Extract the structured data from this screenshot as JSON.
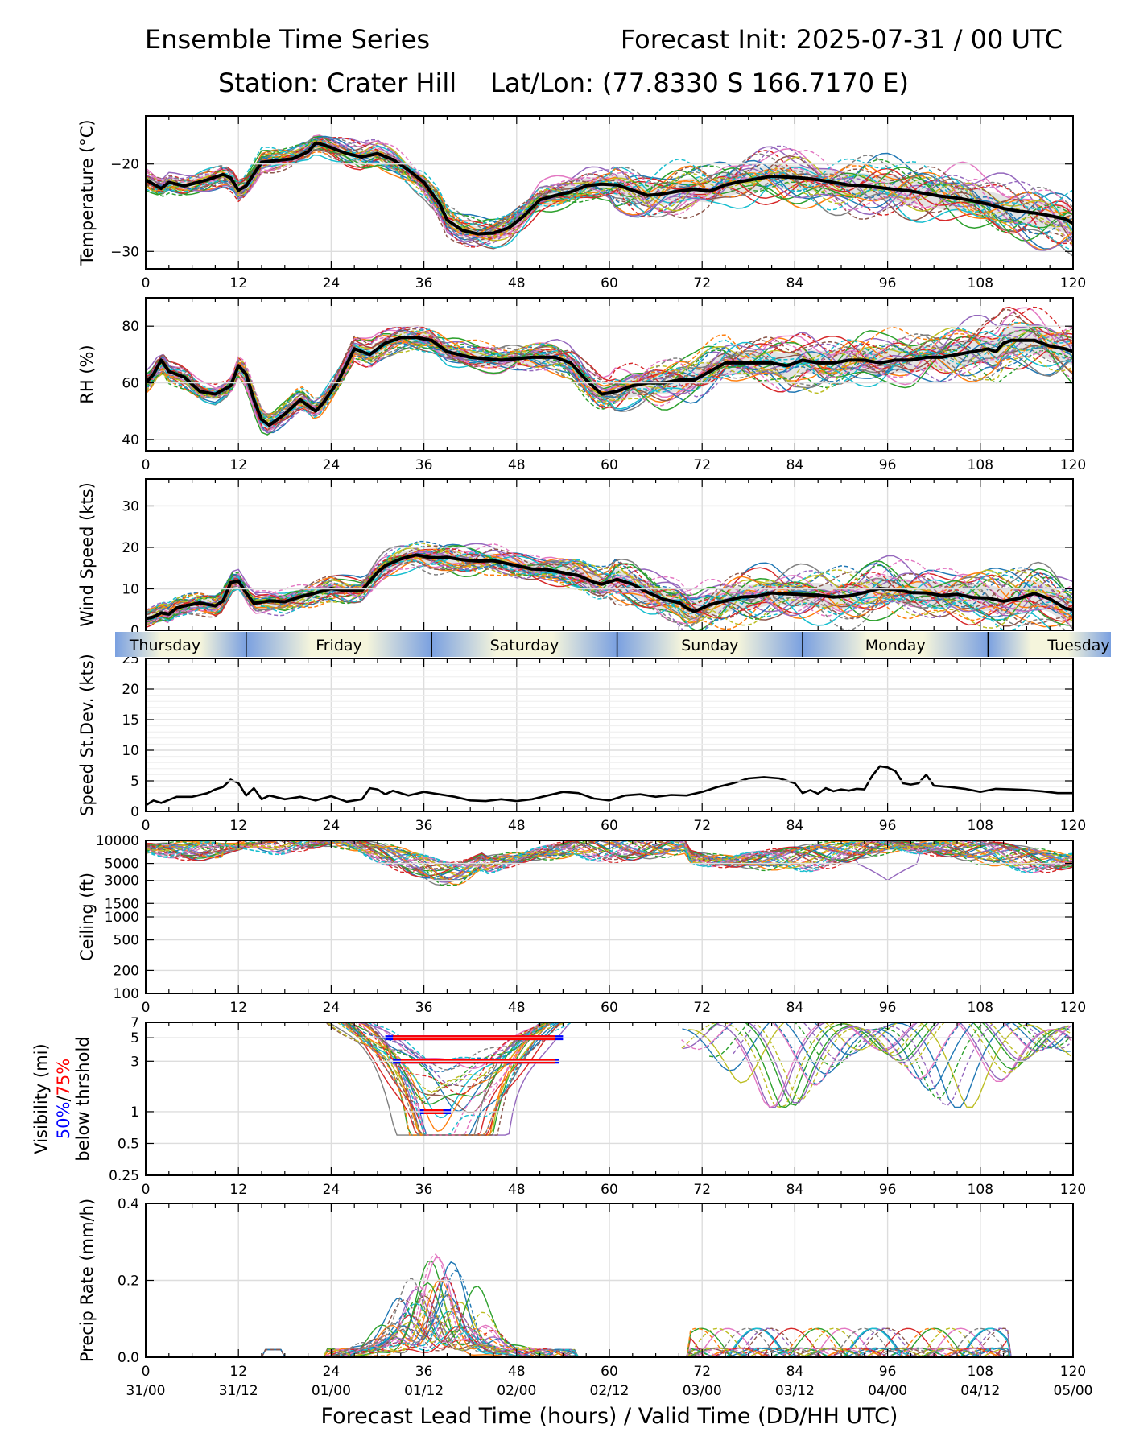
{
  "header": {
    "title": "Ensemble Time Series",
    "init": "Forecast Init: 2025-07-31 / 00 UTC",
    "station": "Station: Crater Hill",
    "latlon": "Lat/Lon: (77.8330 S 166.7170 E)"
  },
  "x_axis": {
    "label": "Forecast Lead Time (hours) / Valid Time (DD/HH UTC)",
    "range": [
      0,
      120
    ],
    "ticks": [
      0,
      12,
      24,
      36,
      48,
      60,
      72,
      84,
      96,
      108,
      120
    ],
    "valid_labels": [
      "31/00",
      "31/12",
      "01/00",
      "01/12",
      "02/00",
      "02/12",
      "03/00",
      "03/12",
      "04/00",
      "04/12",
      "05/00"
    ]
  },
  "day_band": {
    "days": [
      "Thursday",
      "Friday",
      "Saturday",
      "Sunday",
      "Monday",
      "Tuesday"
    ],
    "day_start_hours": [
      -11,
      13,
      37,
      61,
      85,
      109
    ],
    "color_night": "#7aa0e0",
    "color_day": "#f5f5dc"
  },
  "colors": {
    "mean": "#000000",
    "threshold_50": "#0000ff",
    "threshold_75": "#ff0000",
    "spread_fill": "#d9d9d9",
    "grid": "#dddddd"
  },
  "chart_data": [
    {
      "type": "line",
      "panel": "temperature",
      "ylabel": "Temperature (°C)",
      "ylim": [
        -32,
        -14.5
      ],
      "yticks": [
        -30,
        -20
      ],
      "ytick_labels": [
        "−30",
        "−20"
      ],
      "ensemble_members": 30,
      "mean": {
        "x": [
          0,
          2,
          3,
          5,
          8,
          10,
          11,
          12,
          13,
          15,
          17,
          19,
          21,
          22,
          23,
          26,
          28,
          30,
          32,
          34,
          36,
          38,
          39,
          41,
          43,
          45,
          47,
          49,
          51,
          53,
          55,
          57,
          59,
          61,
          63,
          65,
          67,
          69,
          71,
          73,
          75,
          77,
          79,
          81,
          83,
          85,
          87,
          89,
          91,
          93,
          95,
          97,
          99,
          101,
          103,
          105,
          107,
          109,
          111,
          113,
          115,
          117,
          119,
          120
        ],
        "y": [
          -21.8,
          -22.8,
          -22.1,
          -22.5,
          -21.8,
          -21.2,
          -21.6,
          -23.0,
          -22.5,
          -19.8,
          -19.6,
          -19.4,
          -18.6,
          -17.6,
          -17.8,
          -18.8,
          -19.2,
          -18.8,
          -19.5,
          -20.7,
          -22.1,
          -24.5,
          -26.4,
          -27.6,
          -28.0,
          -27.9,
          -27.3,
          -25.9,
          -24.1,
          -23.6,
          -23.2,
          -22.5,
          -22.3,
          -22.4,
          -23.0,
          -23.6,
          -23.4,
          -23.1,
          -22.9,
          -23.1,
          -22.4,
          -22.0,
          -21.7,
          -21.4,
          -21.5,
          -21.6,
          -21.8,
          -22.1,
          -22.4,
          -22.5,
          -22.7,
          -22.9,
          -23.1,
          -23.4,
          -23.7,
          -23.9,
          -24.2,
          -24.6,
          -25.1,
          -25.4,
          -25.6,
          -25.9,
          -26.3,
          -26.8
        ]
      }
    },
    {
      "type": "line",
      "panel": "rh",
      "ylabel": "RH (%)",
      "ylim": [
        36,
        90
      ],
      "yticks": [
        40,
        60,
        80
      ],
      "ensemble_members": 30,
      "mean": {
        "x": [
          0,
          1,
          2,
          3,
          5,
          7,
          9,
          11,
          12,
          13,
          14,
          15,
          16,
          18,
          20,
          22,
          23,
          25,
          27,
          29,
          31,
          33,
          35,
          37,
          39,
          42,
          46,
          50,
          53,
          55,
          57,
          59,
          61,
          63,
          65,
          67,
          69,
          71,
          73,
          75,
          77,
          79,
          81,
          83,
          85,
          87,
          89,
          91,
          93,
          95,
          97,
          99,
          101,
          103,
          105,
          107,
          109,
          110,
          111,
          112,
          115,
          117,
          119,
          120
        ],
        "y": [
          60,
          63,
          68,
          64,
          62,
          57,
          56,
          59,
          66,
          63,
          54,
          47,
          45,
          49,
          54,
          50,
          53,
          61,
          72,
          70,
          74,
          76,
          76,
          75,
          71,
          69,
          68,
          69,
          69,
          67,
          61,
          56,
          57,
          59,
          60,
          60,
          61,
          61,
          64,
          67,
          67,
          67,
          67,
          66,
          68,
          67,
          67,
          68,
          68,
          67,
          68,
          68,
          69,
          69,
          70,
          71,
          72,
          71,
          74,
          75,
          75,
          73,
          72,
          71
        ]
      }
    },
    {
      "type": "line",
      "panel": "wind_speed",
      "ylabel": "Wind Speed (kts)",
      "ylim": [
        0,
        36.5
      ],
      "yticks": [
        0,
        10,
        20,
        30
      ],
      "ensemble_members": 30,
      "mean": {
        "x": [
          0,
          1,
          2,
          3,
          4,
          5,
          7,
          9,
          10,
          11,
          12,
          13,
          14,
          16,
          18,
          20,
          22,
          24,
          26,
          28,
          30,
          31,
          33,
          35,
          37,
          39,
          41,
          43,
          45,
          47,
          50,
          52,
          54,
          56,
          58,
          59,
          61,
          63,
          65,
          67,
          69,
          70,
          71,
          73,
          75,
          77,
          79,
          81,
          83,
          85,
          87,
          89,
          91,
          93,
          95,
          97,
          99,
          101,
          103,
          105,
          107,
          109,
          111,
          113,
          115,
          117,
          119,
          120
        ],
        "y": [
          2.8,
          3.2,
          4.2,
          3.9,
          5.4,
          5.9,
          6.6,
          5.9,
          7.1,
          11.5,
          11.9,
          9.0,
          6.5,
          7.1,
          6.9,
          8.1,
          9.0,
          10.1,
          9.5,
          9.7,
          14.0,
          15.6,
          17.2,
          18.2,
          17.5,
          17.6,
          17.0,
          16.7,
          16.8,
          16.0,
          14.8,
          14.6,
          13.9,
          13.2,
          11.6,
          11.1,
          12.3,
          11.1,
          9.1,
          7.5,
          6.7,
          5.4,
          4.5,
          6.2,
          7.1,
          8.0,
          8.2,
          9.0,
          8.8,
          8.6,
          8.5,
          8.0,
          8.3,
          9.1,
          10.1,
          9.8,
          9.1,
          9.0,
          8.4,
          8.7,
          7.9,
          7.8,
          7.0,
          7.7,
          8.9,
          7.6,
          5.3,
          4.9
        ]
      }
    },
    {
      "type": "line",
      "panel": "speed_stdev",
      "ylabel": "Speed St.Dev. (kts)",
      "ylim": [
        0,
        25
      ],
      "yticks": [
        0,
        5,
        10,
        15,
        20,
        25
      ],
      "series": [
        {
          "x": [
            0,
            1,
            2,
            4,
            6,
            8,
            9,
            10,
            11,
            12,
            13,
            14,
            15,
            16,
            18,
            20,
            22,
            24,
            26,
            28,
            29,
            30,
            31,
            32,
            34,
            36,
            38,
            40,
            42,
            44,
            46,
            48,
            50,
            52,
            54,
            56,
            58,
            60,
            62,
            64,
            66,
            68,
            70,
            72,
            74,
            76,
            78,
            80,
            82,
            84,
            85,
            86,
            87,
            88,
            89,
            90,
            91,
            92,
            93,
            94,
            95,
            96,
            97,
            98,
            99,
            100,
            101,
            102,
            104,
            106,
            108,
            110,
            112,
            114,
            116,
            118,
            120
          ],
          "y": [
            1.0,
            1.8,
            1.4,
            2.4,
            2.4,
            3.0,
            3.6,
            4.0,
            5.2,
            4.6,
            2.6,
            3.8,
            2.0,
            2.6,
            2.0,
            2.4,
            1.8,
            2.5,
            1.6,
            2.0,
            3.8,
            3.6,
            2.8,
            3.4,
            2.6,
            3.2,
            2.8,
            2.4,
            1.8,
            1.7,
            2.0,
            1.7,
            2.0,
            2.6,
            3.2,
            3.0,
            2.1,
            1.8,
            2.6,
            2.8,
            2.4,
            2.7,
            2.6,
            3.2,
            4.0,
            4.6,
            5.4,
            5.6,
            5.4,
            4.6,
            3.0,
            3.5,
            2.9,
            3.8,
            3.3,
            3.6,
            3.4,
            3.7,
            3.6,
            5.8,
            7.4,
            7.2,
            6.6,
            4.6,
            4.4,
            4.6,
            6.0,
            4.2,
            4.0,
            3.7,
            3.2,
            3.7,
            3.6,
            3.5,
            3.3,
            3.0,
            3.0
          ]
        }
      ]
    },
    {
      "type": "line",
      "panel": "ceiling",
      "ylabel": "Ceiling (ft)",
      "scale": "log",
      "ylim": [
        100,
        10000
      ],
      "yticks": [
        100,
        200,
        500,
        1000,
        1500,
        3000,
        5000,
        10000
      ],
      "ensemble_members": 30
    },
    {
      "type": "line",
      "panel": "visibility",
      "ylabel": "Visibility (mi)",
      "ylabel_note": [
        "50%",
        "/",
        "75%",
        "below thrshold"
      ],
      "scale": "log",
      "ylim": [
        0.25,
        7
      ],
      "yticks": [
        0.25,
        0.5,
        1,
        3,
        5,
        7
      ],
      "ensemble_members": 30,
      "threshold_bars": [
        {
          "level": 5,
          "x50": [
            31,
            54
          ],
          "x75": [
            32,
            53
          ]
        },
        {
          "level": 3,
          "x50": [
            32,
            53.5
          ],
          "x75": [
            33,
            53
          ]
        },
        {
          "level": 1,
          "x50": [
            35.5,
            39.5
          ],
          "x75": [
            36,
            38.5
          ]
        }
      ]
    },
    {
      "type": "line",
      "panel": "precip_rate",
      "ylabel": "Precip Rate (mm/h)",
      "ylim": [
        0,
        0.4
      ],
      "yticks": [
        0.0,
        0.2,
        0.4
      ],
      "ytick_labels": [
        "0.0",
        "0.2",
        "0.4"
      ],
      "ensemble_members": 30
    }
  ]
}
